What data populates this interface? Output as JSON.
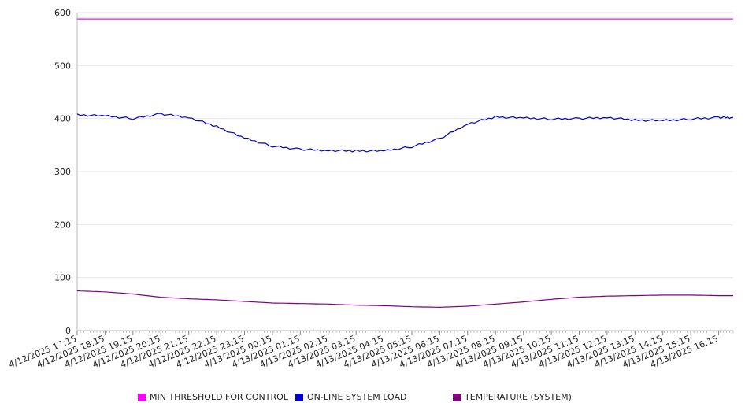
{
  "chart_data": {
    "type": "line",
    "title": "",
    "xlabel": "",
    "ylabel": "",
    "ylim": [
      0,
      600
    ],
    "yticks": [
      0,
      100,
      200,
      300,
      400,
      500,
      600
    ],
    "x": [
      "4/12/2025 17:15",
      "4/12/2025 18:15",
      "4/12/2025 19:15",
      "4/12/2025 20:15",
      "4/12/2025 21:15",
      "4/12/2025 22:15",
      "4/12/2025 23:15",
      "4/13/2025 00:15",
      "4/13/2025 01:15",
      "4/13/2025 02:15",
      "4/13/2025 03:15",
      "4/13/2025 04:15",
      "4/13/2025 05:15",
      "4/13/2025 06:15",
      "4/13/2025 07:15",
      "4/13/2025 08:15",
      "4/13/2025 09:15",
      "4/13/2025 10:15",
      "4/13/2025 11:15",
      "4/13/2025 12:15",
      "4/13/2025 13:15",
      "4/13/2025 14:15",
      "4/13/2025 15:15",
      "4/13/2025 16:15"
    ],
    "series": [
      {
        "name": "MIN THRESHOLD FOR CONTROL",
        "color": "#ff00ff",
        "values": [
          588,
          588,
          588,
          588,
          588,
          588,
          588,
          588,
          588,
          588,
          588,
          588,
          588,
          588,
          588,
          588,
          588,
          588,
          588,
          588,
          588,
          588,
          588,
          588
        ]
      },
      {
        "name": "ON-LINE SYSTEM LOAD",
        "color": "#0000cc",
        "values": [
          407,
          405,
          400,
          409,
          402,
          385,
          363,
          348,
          342,
          340,
          339,
          339,
          347,
          362,
          390,
          403,
          401,
          399,
          400,
          402,
          397,
          396,
          399,
          402
        ]
      },
      {
        "name": "TEMPERATURE (SYSTEM)",
        "color": "#800080",
        "values": [
          75,
          73,
          69,
          63,
          60,
          58,
          55,
          52,
          51,
          50,
          48,
          47,
          45,
          44,
          46,
          50,
          54,
          59,
          63,
          65,
          66,
          67,
          67,
          66
        ]
      }
    ],
    "grid": "horizontal",
    "legend_position": "bottom"
  }
}
